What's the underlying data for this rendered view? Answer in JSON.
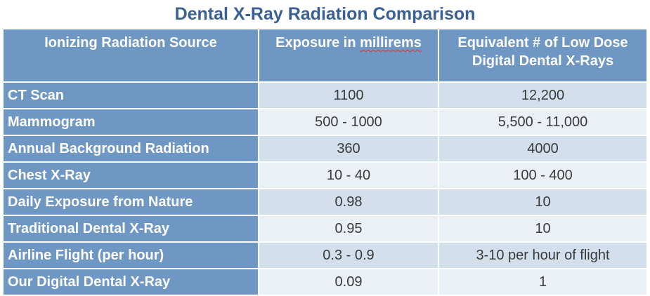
{
  "title": "Dental X-Ray Radiation Comparison",
  "headers": {
    "source": "Ionizing Radiation Source",
    "exposure_prefix": "Exposure in ",
    "exposure_unit": "millirems",
    "equivalent_line1": "Equivalent # of Low Dose",
    "equivalent_line2": "Digital Dental X-Rays"
  },
  "rows": [
    {
      "source": "CT Scan",
      "exposure": "1100",
      "equivalent": "12,200"
    },
    {
      "source": "Mammogram",
      "exposure": "500 - 1000",
      "equivalent": "5,500 - 11,000"
    },
    {
      "source": "Annual Background Radiation",
      "exposure": "360",
      "equivalent": "4000"
    },
    {
      "source": "Chest X-Ray",
      "exposure": "10 - 40",
      "equivalent": "100 - 400"
    },
    {
      "source": "Daily Exposure from Nature",
      "exposure": "0.98",
      "equivalent": "10"
    },
    {
      "source": "Traditional Dental X-Ray",
      "exposure": "0.95",
      "equivalent": "10"
    },
    {
      "source": "Airline Flight (per hour)",
      "exposure": "0.3 - 0.9",
      "equivalent": "3-10 per hour of flight"
    },
    {
      "source": "Our Digital Dental X-Ray",
      "exposure": "0.09",
      "equivalent": "1"
    }
  ],
  "colors": {
    "title": "#3a5f93",
    "header_bg": "#6f97c4",
    "row_dark": "#d3dfec",
    "row_light": "#eaf0f6",
    "spellcheck_underline": "#e0321b"
  }
}
